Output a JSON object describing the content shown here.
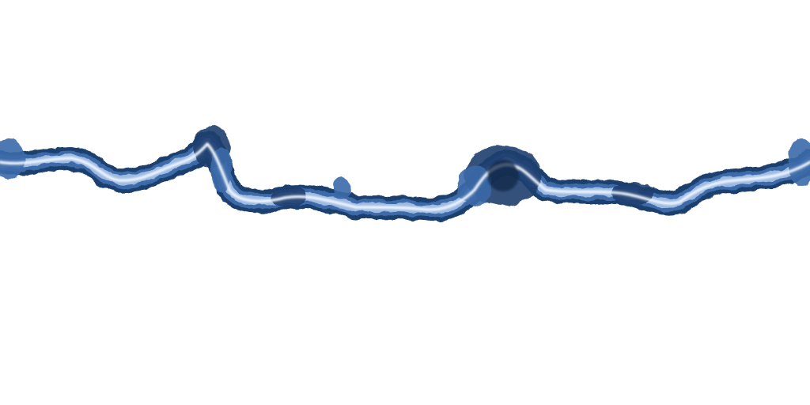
{
  "colors": {
    "background": "#ffffff",
    "outer": "#1f3f6e",
    "mid": "#3c6aa8",
    "light": "#9dbbe2",
    "core": "#f4f8ff",
    "deep": "#0f2748"
  }
}
